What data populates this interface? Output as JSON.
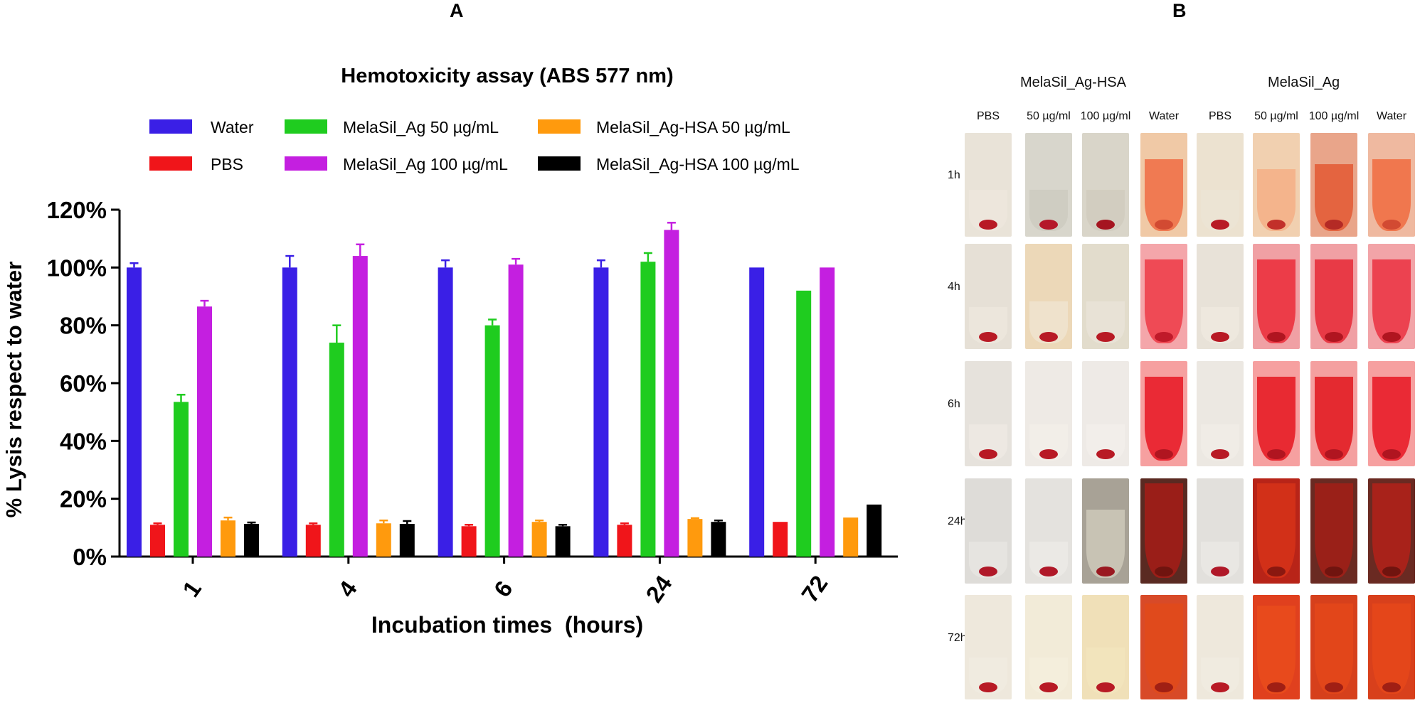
{
  "panel_labels": {
    "a": "A",
    "b": "B"
  },
  "chart_data": {
    "type": "bar",
    "title": "Hemotoxicity assay (ABS 577 nm)",
    "xlabel": "Incubation times  (hours)",
    "ylabel": "% Lysis respect to water",
    "ylim": [
      0,
      120
    ],
    "yticks": [
      "0%",
      "20%",
      "40%",
      "60%",
      "80%",
      "100%",
      "120%"
    ],
    "categories": [
      "1",
      "4",
      "6",
      "24",
      "72"
    ],
    "series": [
      {
        "name": "Water",
        "color": "#3a1fe6",
        "values": [
          100,
          100,
          100,
          100,
          100
        ],
        "errors": [
          1.5,
          4,
          2.5,
          2.5,
          0
        ]
      },
      {
        "name": "PBS",
        "color": "#f0151a",
        "values": [
          11,
          11,
          10.5,
          11,
          12
        ],
        "errors": [
          0.5,
          0.5,
          0.5,
          0.5,
          0
        ]
      },
      {
        "name": "MelaSil_Ag 50 µg/mL",
        "color": "#1fcc1f",
        "values": [
          53.5,
          74,
          80,
          102,
          92
        ],
        "errors": [
          2.5,
          6,
          2,
          3,
          0
        ]
      },
      {
        "name": "MelaSil_Ag 100 µg/mL",
        "color": "#c41fe0",
        "values": [
          86.5,
          104,
          101,
          113,
          100
        ],
        "errors": [
          2,
          4,
          2,
          2.5,
          0
        ]
      },
      {
        "name": "MelaSil_Ag-HSA 50 µg/mL",
        "color": "#ff9a0d",
        "values": [
          12.5,
          11.5,
          12,
          13,
          13.5
        ],
        "errors": [
          1,
          1,
          0.5,
          0.3,
          0
        ]
      },
      {
        "name": "MelaSil_Ag-HSA 100 µg/mL",
        "color": "#000000",
        "values": [
          11.3,
          11.3,
          10.5,
          12,
          18
        ],
        "errors": [
          0.5,
          1,
          0.5,
          0.5,
          0
        ]
      }
    ],
    "legend_position": "top"
  },
  "photo_panel": {
    "groups": [
      "MelaSil_Ag-HSA",
      "MelaSil_Ag"
    ],
    "columns": [
      "PBS",
      "50 µg/ml",
      "100 µg/ml",
      "Water",
      "PBS",
      "50 µg/ml",
      "100 µg/ml",
      "Water"
    ],
    "rows": [
      "1h",
      "4h",
      "6h",
      "24h",
      "72h"
    ]
  }
}
